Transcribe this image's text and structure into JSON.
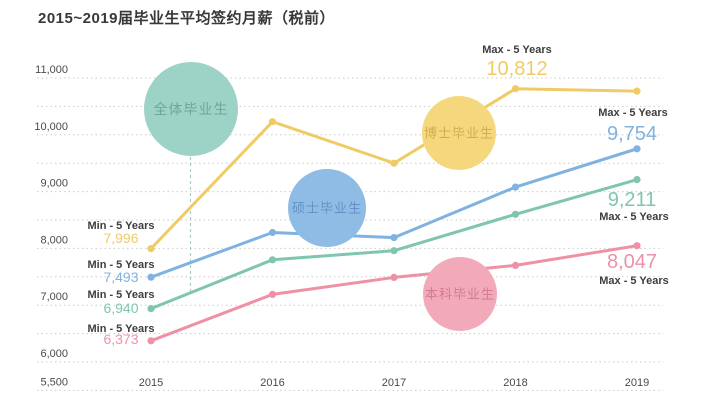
{
  "title": "2015~2019届毕业生平均签约月薪（税前）",
  "chart_data": {
    "type": "line",
    "title": "2015~2019届毕业生平均签约月薪（税前）",
    "x_labels": [
      "2015",
      "2016",
      "2017",
      "2018",
      "2019"
    ],
    "y_tick_labels": [
      "11,000",
      "10,000",
      "9,000",
      "8,000",
      "7,000",
      "6,000",
      "5,500"
    ],
    "y_tick_values": [
      11000,
      10000,
      9000,
      8000,
      7000,
      6000,
      5500
    ],
    "ylim": [
      5500,
      11000
    ],
    "grid_step": 500,
    "grid": "horizontal dotted",
    "legend_position": "labeled bubbles on chart",
    "series": [
      {
        "key": "phd",
        "name": "博士毕业生",
        "color": "#F0CB65",
        "bubble_fill": "#F5D87D",
        "bubble_text_color": "#D2AC50",
        "values": [
          7996,
          10230,
          9500,
          10812,
          10770
        ],
        "min_annotation": {
          "label": "Min - 5 Years",
          "value": "7,996"
        },
        "max_annotation": {
          "label": "Max - 5 Years",
          "value": "10,812"
        }
      },
      {
        "key": "master",
        "name": "硕士毕业生",
        "color": "#80B2E1",
        "bubble_fill": "#8FBCE4",
        "bubble_text_color": "#6492C6",
        "values": [
          7493,
          8280,
          8190,
          9080,
          9754
        ],
        "min_annotation": {
          "label": "Min - 5 Years",
          "value": "7,493"
        },
        "max_annotation": {
          "label": "Max - 5 Years",
          "value": "9,754"
        }
      },
      {
        "key": "all",
        "name": "全体毕业生",
        "color": "#7FC5B2",
        "bubble_fill": "#9DD3C7",
        "bubble_text_color": "#6FA69A",
        "values": [
          6940,
          7800,
          7960,
          8600,
          9211
        ],
        "min_annotation": {
          "label": "Min - 5 Years",
          "value": "6,940"
        },
        "max_annotation": {
          "label": "Max - 5 Years",
          "value": "9,211"
        }
      },
      {
        "key": "bachelor",
        "name": "本科毕业生",
        "color": "#EF91A5",
        "bubble_fill": "#F2AABA",
        "bubble_text_color": "#D47B90",
        "values": [
          6373,
          7190,
          7490,
          7700,
          8047
        ],
        "min_annotation": {
          "label": "Min - 5 Years",
          "value": "6,373"
        },
        "max_annotation": {
          "label": "Max - 5 Years",
          "value": "8,047"
        }
      }
    ]
  }
}
